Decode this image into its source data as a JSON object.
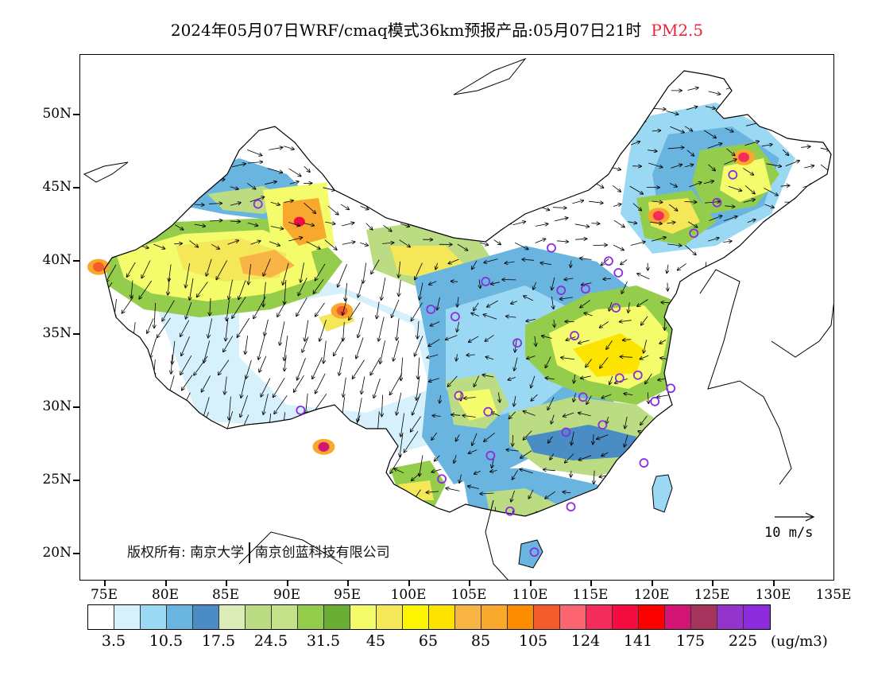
{
  "title": {
    "main": "2024年05月07日WRF/cmaq模式36km预报产品:05月07日21时",
    "variable": "PM2.5"
  },
  "latitude_labels": [
    "50N",
    "45N",
    "40N",
    "35N",
    "30N",
    "25N",
    "20N"
  ],
  "longitude_labels": [
    "75E",
    "80E",
    "85E",
    "90E",
    "95E",
    "100E",
    "105E",
    "110E",
    "115E",
    "120E",
    "125E",
    "130E",
    "135E"
  ],
  "copyright": {
    "part1": "版权所有: 南京大学",
    "part2": "南京创蓝科技有限公司"
  },
  "wind_reference": {
    "label": "10 m/s",
    "speed": 10
  },
  "colorbar": {
    "colors": [
      "#ffffff",
      "#d6f0fc",
      "#9ad8f4",
      "#6ab4e0",
      "#4a8cc4",
      "#dcecb8",
      "#bcdc84",
      "#c4e088",
      "#94cc4c",
      "#6aac34",
      "#f4fc6c",
      "#f4e858",
      "#fcf400",
      "#fce400",
      "#f8b444",
      "#f8a82c",
      "#fc8c00",
      "#f45c2c",
      "#fc6470",
      "#f42c5c",
      "#f40c40",
      "#fc0000",
      "#d41474",
      "#a4345c",
      "#9434cc",
      "#8c2cdc"
    ],
    "labels": [
      "3.5",
      "10.5",
      "17.5",
      "24.5",
      "31.5",
      "45",
      "65",
      "85",
      "105",
      "124",
      "141",
      "175",
      "225"
    ],
    "unit": "(ug/m3)"
  },
  "map": {
    "lon_range": [
      73,
      135
    ],
    "lat_range": [
      18,
      54
    ],
    "hotspots": [
      {
        "lon": 91.0,
        "lat": 42.6,
        "value": 141,
        "color": "#f40c40"
      },
      {
        "lon": 74.5,
        "lat": 39.5,
        "value": 105,
        "color": "#f45c2c"
      },
      {
        "lon": 120.5,
        "lat": 43.0,
        "value": 124,
        "color": "#f42c5c"
      },
      {
        "lon": 127.5,
        "lat": 47.0,
        "value": 124,
        "color": "#f42c5c"
      },
      {
        "lon": 94.5,
        "lat": 36.5,
        "value": 105,
        "color": "#f45c2c"
      },
      {
        "lon": 93.0,
        "lat": 27.2,
        "value": 141,
        "color": "#d41474"
      }
    ],
    "city_markers": [
      {
        "lon": 87.6,
        "lat": 43.8
      },
      {
        "lon": 91.1,
        "lat": 29.7
      },
      {
        "lon": 101.8,
        "lat": 36.6
      },
      {
        "lon": 103.8,
        "lat": 36.1
      },
      {
        "lon": 106.3,
        "lat": 38.5
      },
      {
        "lon": 111.7,
        "lat": 40.8
      },
      {
        "lon": 108.9,
        "lat": 34.3
      },
      {
        "lon": 104.1,
        "lat": 30.7
      },
      {
        "lon": 106.5,
        "lat": 29.6
      },
      {
        "lon": 106.7,
        "lat": 26.6
      },
      {
        "lon": 102.7,
        "lat": 25.0
      },
      {
        "lon": 108.3,
        "lat": 22.8
      },
      {
        "lon": 110.3,
        "lat": 20.0
      },
      {
        "lon": 113.3,
        "lat": 23.1
      },
      {
        "lon": 112.9,
        "lat": 28.2
      },
      {
        "lon": 114.3,
        "lat": 30.6
      },
      {
        "lon": 115.9,
        "lat": 28.7
      },
      {
        "lon": 119.3,
        "lat": 26.1
      },
      {
        "lon": 120.2,
        "lat": 30.3
      },
      {
        "lon": 121.5,
        "lat": 31.2
      },
      {
        "lon": 118.8,
        "lat": 32.1
      },
      {
        "lon": 117.3,
        "lat": 31.9
      },
      {
        "lon": 113.6,
        "lat": 34.8
      },
      {
        "lon": 112.5,
        "lat": 37.9
      },
      {
        "lon": 114.5,
        "lat": 38.0
      },
      {
        "lon": 117.0,
        "lat": 36.7
      },
      {
        "lon": 116.4,
        "lat": 39.9
      },
      {
        "lon": 117.2,
        "lat": 39.1
      },
      {
        "lon": 123.4,
        "lat": 41.8
      },
      {
        "lon": 125.3,
        "lat": 43.9
      },
      {
        "lon": 126.6,
        "lat": 45.8
      }
    ]
  }
}
